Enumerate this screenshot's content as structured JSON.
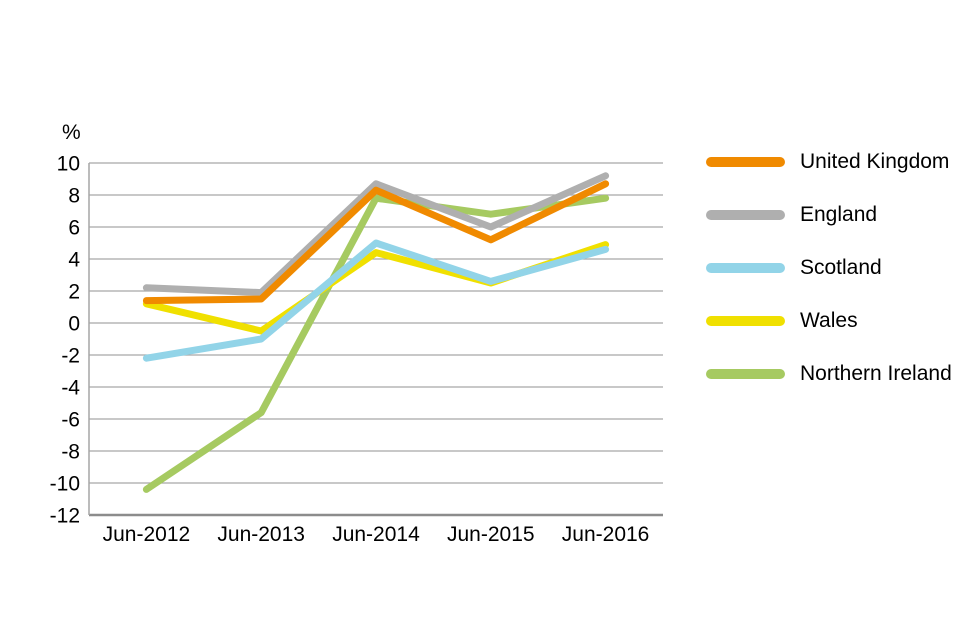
{
  "chart_data": {
    "type": "line",
    "title": "",
    "unit_label": "%",
    "xlabel": "",
    "ylabel": "%",
    "x": [
      "Jun-2012",
      "Jun-2013",
      "Jun-2014",
      "Jun-2015",
      "Jun-2016"
    ],
    "series": [
      {
        "name": "United Kingdom",
        "color": "#F08A00",
        "values": [
          1.4,
          1.5,
          8.3,
          5.2,
          8.7
        ]
      },
      {
        "name": "England",
        "color": "#AFAFAF",
        "values": [
          2.2,
          1.9,
          8.7,
          6.0,
          9.2
        ]
      },
      {
        "name": "Scotland",
        "color": "#92D4E8",
        "values": [
          -2.2,
          -1.0,
          5.0,
          2.6,
          4.6
        ]
      },
      {
        "name": "Wales",
        "color": "#F0E000",
        "values": [
          1.2,
          -0.5,
          4.4,
          2.5,
          4.9
        ]
      },
      {
        "name": "Northern Ireland",
        "color": "#A6CA61",
        "values": [
          -10.4,
          -5.6,
          7.8,
          6.8,
          7.8
        ]
      }
    ],
    "ylim": [
      -12,
      10
    ],
    "ytick_step": 2,
    "yticks": [
      "10",
      "8",
      "6",
      "4",
      "2",
      "0",
      "-2",
      "-4",
      "-6",
      "-8",
      "-10",
      "-12"
    ],
    "grid": true,
    "legend_position": "right",
    "z_order_bottom_to_top": [
      "Northern Ireland",
      "Wales",
      "Scotland",
      "England",
      "United Kingdom"
    ]
  }
}
